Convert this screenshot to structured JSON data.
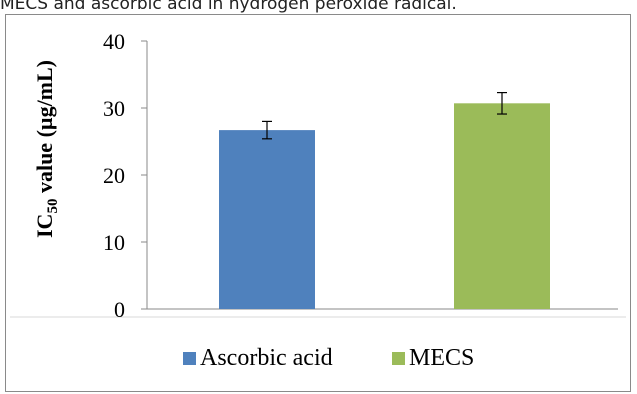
{
  "caption": "MECS and ascorbic acid in hydrogen peroxide radical.",
  "chart_data": {
    "type": "bar",
    "categories": [
      "Ascorbic acid",
      "MECS"
    ],
    "values": [
      26.7,
      30.7
    ],
    "errors": [
      1.3,
      1.6
    ],
    "colors": [
      "#4f81bd",
      "#9bbb59"
    ],
    "ylabel_main": "IC",
    "ylabel_sub": "50",
    "ylabel_rest": " value (µg/mL)",
    "ylim": [
      0,
      40
    ],
    "yticks": [
      "0",
      "10",
      "20",
      "30",
      "40"
    ],
    "grid": false,
    "legend_position": "bottom",
    "legend": [
      {
        "name": "Ascorbic acid",
        "color": "#4f81bd"
      },
      {
        "name": "MECS",
        "color": "#9bbb59"
      }
    ]
  }
}
